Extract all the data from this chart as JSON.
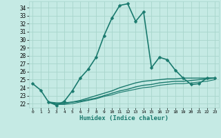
{
  "title": "",
  "xlabel": "Humidex (Indice chaleur)",
  "ylabel": "",
  "bg_color": "#c5eae4",
  "grid_color": "#a8d5cc",
  "line_color": "#1a7a6e",
  "xlim": [
    -0.5,
    23.5
  ],
  "ylim": [
    21.5,
    34.8
  ],
  "yticks": [
    22,
    23,
    24,
    25,
    26,
    27,
    28,
    29,
    30,
    31,
    32,
    33,
    34
  ],
  "xticks": [
    0,
    1,
    2,
    3,
    4,
    5,
    6,
    7,
    8,
    9,
    10,
    11,
    12,
    13,
    14,
    15,
    16,
    17,
    18,
    19,
    20,
    21,
    22,
    23
  ],
  "series": [
    {
      "x": [
        0,
        1,
        2,
        3,
        4,
        5,
        6,
        7,
        8,
        9,
        10,
        11,
        12,
        13,
        14,
        15,
        16,
        17,
        18,
        19,
        20,
        21,
        22,
        23
      ],
      "y": [
        24.5,
        23.7,
        22.2,
        21.8,
        22.3,
        23.6,
        25.2,
        26.3,
        27.8,
        30.5,
        32.7,
        34.3,
        34.5,
        32.3,
        33.5,
        26.5,
        27.8,
        27.5,
        26.2,
        25.2,
        24.4,
        24.5,
        25.2,
        25.2
      ],
      "marker": "D",
      "markersize": 2.5,
      "lw": 1.2
    },
    {
      "x": [
        2,
        3,
        4,
        5,
        6,
        7,
        8,
        9,
        10,
        11,
        12,
        13,
        14,
        15,
        16,
        17,
        18,
        19,
        20,
        21,
        22,
        23
      ],
      "y": [
        22.2,
        22.1,
        22.1,
        22.2,
        22.3,
        22.5,
        22.7,
        23.0,
        23.3,
        23.6,
        23.8,
        24.1,
        24.3,
        24.4,
        24.6,
        24.7,
        24.8,
        24.8,
        24.9,
        25.0,
        25.1,
        25.2
      ],
      "marker": null,
      "markersize": 0,
      "lw": 1.0
    },
    {
      "x": [
        2,
        3,
        4,
        5,
        6,
        7,
        8,
        9,
        10,
        11,
        12,
        13,
        14,
        15,
        16,
        17,
        18,
        19,
        20,
        21,
        22,
        23
      ],
      "y": [
        22.2,
        22.0,
        22.0,
        22.2,
        22.4,
        22.7,
        23.0,
        23.3,
        23.6,
        24.0,
        24.3,
        24.6,
        24.8,
        24.9,
        25.0,
        25.1,
        25.1,
        25.2,
        25.2,
        25.2,
        25.2,
        25.2
      ],
      "marker": null,
      "markersize": 0,
      "lw": 1.0
    },
    {
      "x": [
        2,
        3,
        4,
        5,
        6,
        7,
        8,
        9,
        10,
        11,
        12,
        13,
        14,
        15,
        16,
        17,
        18,
        19,
        20,
        21,
        22,
        23
      ],
      "y": [
        22.2,
        21.9,
        21.9,
        22.0,
        22.2,
        22.4,
        22.6,
        22.9,
        23.1,
        23.4,
        23.6,
        23.8,
        24.0,
        24.1,
        24.3,
        24.4,
        24.5,
        24.5,
        24.6,
        24.7,
        24.8,
        25.0
      ],
      "marker": null,
      "markersize": 0,
      "lw": 0.8
    }
  ]
}
